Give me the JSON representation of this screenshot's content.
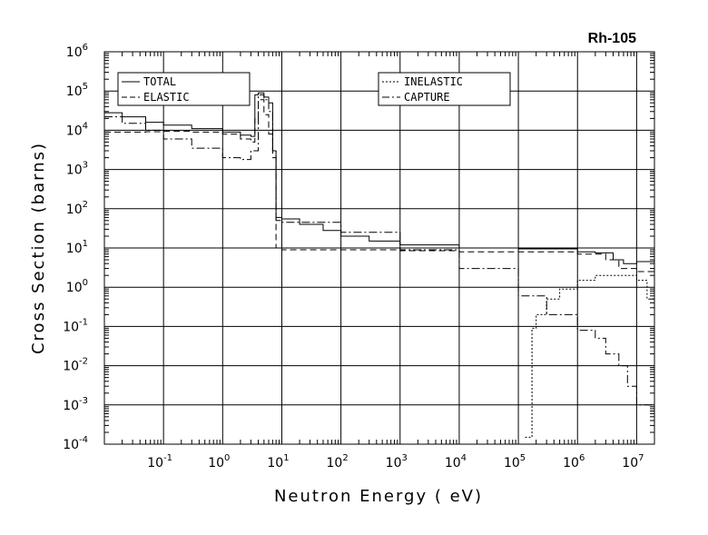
{
  "chart_data": {
    "type": "line",
    "title": "Rh-105",
    "xlabel": "Neutron Energy ( eV)",
    "ylabel": "Cross Section (barns)",
    "x_scale": "log",
    "y_scale": "log",
    "xlim": [
      0.01,
      20000000
    ],
    "ylim": [
      0.0001,
      1000000
    ],
    "grid": true,
    "x_ticks": [
      {
        "base": "10",
        "exp": "-1",
        "value": 0.1
      },
      {
        "base": "10",
        "exp": "0",
        "value": 1
      },
      {
        "base": "10",
        "exp": "1",
        "value": 10
      },
      {
        "base": "10",
        "exp": "2",
        "value": 100
      },
      {
        "base": "10",
        "exp": "3",
        "value": 1000
      },
      {
        "base": "10",
        "exp": "4",
        "value": 10000
      },
      {
        "base": "10",
        "exp": "5",
        "value": 100000
      },
      {
        "base": "10",
        "exp": "6",
        "value": 1000000
      },
      {
        "base": "10",
        "exp": "7",
        "value": 10000000
      }
    ],
    "y_ticks": [
      {
        "base": "10",
        "exp": "-4",
        "value": 0.0001
      },
      {
        "base": "10",
        "exp": "-3",
        "value": 0.001
      },
      {
        "base": "10",
        "exp": "-2",
        "value": 0.01
      },
      {
        "base": "10",
        "exp": "-1",
        "value": 0.1
      },
      {
        "base": "10",
        "exp": "0",
        "value": 1
      },
      {
        "base": "10",
        "exp": "1",
        "value": 10
      },
      {
        "base": "10",
        "exp": "2",
        "value": 100
      },
      {
        "base": "10",
        "exp": "3",
        "value": 1000
      },
      {
        "base": "10",
        "exp": "4",
        "value": 10000
      },
      {
        "base": "10",
        "exp": "5",
        "value": 100000
      },
      {
        "base": "10",
        "exp": "6",
        "value": 1000000
      }
    ],
    "legend": {
      "left": [
        {
          "name": "TOTAL",
          "style": "solid"
        },
        {
          "name": "ELASTIC",
          "style": "dashed"
        }
      ],
      "right": [
        {
          "name": "INELASTIC",
          "style": "dotted"
        },
        {
          "name": "CAPTURE",
          "style": "dashdot"
        }
      ]
    },
    "series": [
      {
        "name": "TOTAL",
        "style": "solid",
        "points": [
          [
            0.01,
            28000
          ],
          [
            0.02,
            22000
          ],
          [
            0.05,
            16000
          ],
          [
            0.1,
            13500
          ],
          [
            0.3,
            11000
          ],
          [
            1,
            9000
          ],
          [
            2,
            7500
          ],
          [
            3,
            7000
          ],
          [
            3.5,
            80000
          ],
          [
            4,
            90000
          ],
          [
            5,
            70000
          ],
          [
            6,
            50000
          ],
          [
            7,
            3000
          ],
          [
            8,
            60
          ],
          [
            10,
            55
          ],
          [
            20,
            40
          ],
          [
            50,
            28
          ],
          [
            100,
            20
          ],
          [
            300,
            15
          ],
          [
            1000,
            12
          ],
          [
            10000,
            10
          ],
          [
            100000,
            9.5
          ],
          [
            1000000,
            8
          ],
          [
            2000000,
            7.5
          ],
          [
            4000000,
            5
          ],
          [
            6000000,
            4
          ],
          [
            10000000,
            4.5
          ],
          [
            20000000,
            5
          ]
        ]
      },
      {
        "name": "ELASTIC",
        "style": "dashed",
        "points": [
          [
            0.01,
            9000
          ],
          [
            0.05,
            9200
          ],
          [
            0.1,
            9400
          ],
          [
            0.3,
            9000
          ],
          [
            1,
            8000
          ],
          [
            2,
            6000
          ],
          [
            3,
            5000
          ],
          [
            3.5,
            20000
          ],
          [
            4,
            60000
          ],
          [
            5,
            25000
          ],
          [
            6,
            8000
          ],
          [
            7,
            2000
          ],
          [
            8,
            10
          ],
          [
            10,
            9
          ],
          [
            100,
            9
          ],
          [
            1000,
            8.5
          ],
          [
            10000,
            8
          ],
          [
            100000,
            8
          ],
          [
            1000000,
            7
          ],
          [
            3000000,
            5
          ],
          [
            5000000,
            3
          ],
          [
            10000000,
            2.5
          ],
          [
            20000000,
            3
          ]
        ]
      },
      {
        "name": "INELASTIC",
        "style": "dotted",
        "points": [
          [
            130000,
            0.00015
          ],
          [
            160000,
            0.00015
          ],
          [
            170000,
            0.09
          ],
          [
            200000,
            0.2
          ],
          [
            300000,
            0.5
          ],
          [
            500000,
            0.9
          ],
          [
            1000000,
            1.5
          ],
          [
            2000000,
            2
          ],
          [
            5000000,
            2
          ],
          [
            10000000,
            1.5
          ],
          [
            15000000,
            0.5
          ],
          [
            20000000,
            0.1
          ]
        ]
      },
      {
        "name": "CAPTURE",
        "style": "dashdot",
        "points": [
          [
            0.01,
            22000
          ],
          [
            0.02,
            15000
          ],
          [
            0.05,
            10000
          ],
          [
            0.1,
            6000
          ],
          [
            0.3,
            3500
          ],
          [
            1,
            2000
          ],
          [
            2,
            1800
          ],
          [
            3,
            3000
          ],
          [
            4,
            80000
          ],
          [
            5,
            60000
          ],
          [
            6,
            30000
          ],
          [
            7,
            3000
          ],
          [
            8,
            50
          ],
          [
            10,
            45
          ],
          [
            100,
            25
          ],
          [
            1000,
            9
          ],
          [
            10000,
            3
          ],
          [
            100000,
            0.6
          ],
          [
            300000,
            0.2
          ],
          [
            1000000,
            0.08
          ],
          [
            2000000,
            0.05
          ],
          [
            3000000,
            0.02
          ],
          [
            5000000,
            0.01
          ],
          [
            7000000,
            0.003
          ],
          [
            10000000,
            0.001
          ],
          [
            20000000,
            0.0009
          ]
        ]
      }
    ]
  }
}
